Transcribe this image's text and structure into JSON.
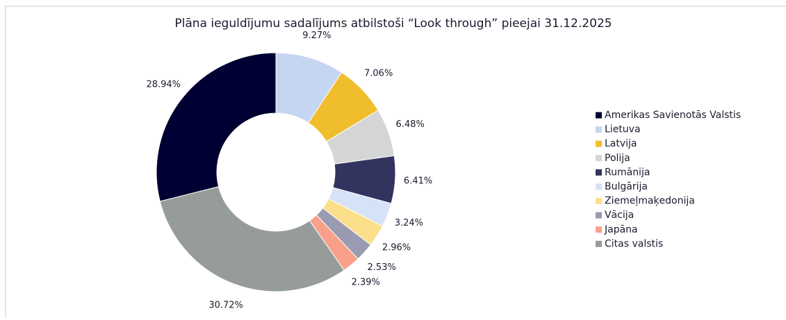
{
  "chart_data": {
    "type": "donut",
    "title": "Plāna ieguldījumu sadalījums atbilstoši “Look through” pieejai 31.12.2025",
    "categories": [
      "Amerikas Savienotās Valstis",
      "Lietuva",
      "Latvija",
      "Polija",
      "Rumānija",
      "Bulgārija",
      "Ziemeļmaķedonija",
      "Vācija",
      "Japāna",
      "Citas valstis"
    ],
    "values": [
      28.94,
      9.27,
      7.06,
      6.48,
      6.41,
      3.24,
      2.96,
      2.53,
      2.39,
      30.72
    ],
    "value_labels": [
      "28.94%",
      "9.27%",
      "7.06%",
      "6.48%",
      "6.41%",
      "3.24%",
      "2.96%",
      "2.53%",
      "2.39%",
      "30.72%"
    ],
    "colors": [
      "#000033",
      "#c5d6f2",
      "#f0bd2d",
      "#d4d6d5",
      "#333360",
      "#d6e2f5",
      "#fcdf8a",
      "#9a9bb0",
      "#f8a08a",
      "#969c9a"
    ],
    "legend": "right"
  }
}
